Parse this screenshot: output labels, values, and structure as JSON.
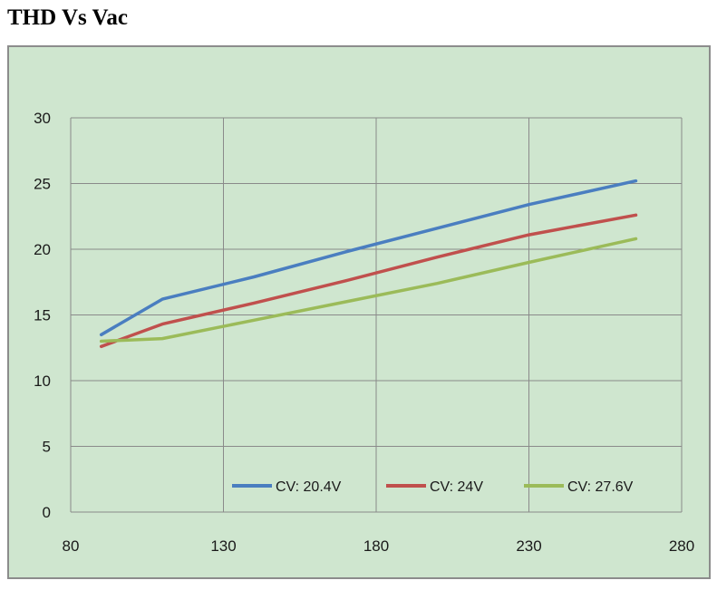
{
  "page": {
    "title": "THD Vs Vac"
  },
  "colors": {
    "background": "#cfe6cf",
    "gridline": "#8a8a8a",
    "series": [
      "#4a7ec0",
      "#c0504d",
      "#9bbb59"
    ]
  },
  "chart_data": {
    "type": "line",
    "title": "",
    "xlabel": "",
    "ylabel": "",
    "xlim": [
      80,
      280
    ],
    "ylim": [
      0,
      30
    ],
    "xticks": [
      80,
      130,
      180,
      230,
      280
    ],
    "yticks": [
      0,
      5,
      10,
      15,
      20,
      25,
      30
    ],
    "x_tick_labels": [
      "80",
      "130",
      "180",
      "230",
      "280"
    ],
    "y_tick_labels": [
      "0",
      "5",
      "10",
      "15",
      "20",
      "25",
      "30"
    ],
    "grid": true,
    "legend_position": "bottom-right",
    "series": [
      {
        "name": "CV: 20.4V",
        "x": [
          90,
          110,
          140,
          170,
          200,
          230,
          265
        ],
        "y": [
          13.5,
          16.2,
          17.9,
          19.8,
          21.6,
          23.4,
          25.2
        ]
      },
      {
        "name": "CV: 24V",
        "x": [
          90,
          110,
          140,
          170,
          200,
          230,
          265
        ],
        "y": [
          12.6,
          14.3,
          15.9,
          17.6,
          19.4,
          21.1,
          22.6
        ]
      },
      {
        "name": "CV: 27.6V",
        "x": [
          90,
          110,
          140,
          170,
          200,
          230,
          265
        ],
        "y": [
          13.0,
          13.2,
          14.6,
          16.0,
          17.4,
          19.0,
          20.8
        ]
      }
    ]
  }
}
